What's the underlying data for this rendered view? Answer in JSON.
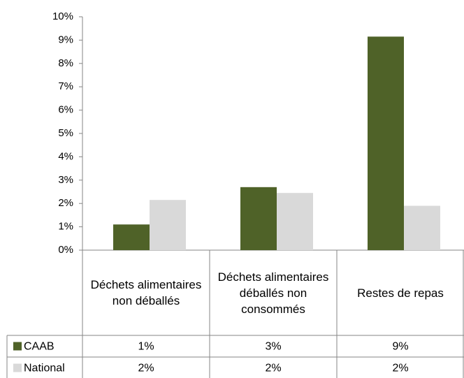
{
  "chart_data": {
    "type": "bar",
    "categories": [
      "Déchets alimentaires non déballés",
      "Déchets alimentaires déballés non consommés",
      "Restes de repas"
    ],
    "series": [
      {
        "name": "CAAB",
        "color": "#4f6228",
        "values": [
          1.1,
          2.7,
          9.15
        ],
        "value_labels": [
          "1%",
          "3%",
          "9%"
        ]
      },
      {
        "name": "National",
        "color": "#d9d9d9",
        "values": [
          2.15,
          2.45,
          1.9
        ],
        "value_labels": [
          "2%",
          "2%",
          "2%"
        ]
      }
    ],
    "ylim": [
      0,
      10
    ],
    "yticks": [
      {
        "value": 0,
        "label": "0%"
      },
      {
        "value": 1,
        "label": "1%"
      },
      {
        "value": 2,
        "label": "2%"
      },
      {
        "value": 3,
        "label": "3%"
      },
      {
        "value": 4,
        "label": "4%"
      },
      {
        "value": 5,
        "label": "5%"
      },
      {
        "value": 6,
        "label": "6%"
      },
      {
        "value": 7,
        "label": "7%"
      },
      {
        "value": 8,
        "label": "8%"
      },
      {
        "value": 9,
        "label": "9%"
      },
      {
        "value": 10,
        "label": "10%"
      }
    ],
    "grid": false,
    "data_table": true
  }
}
